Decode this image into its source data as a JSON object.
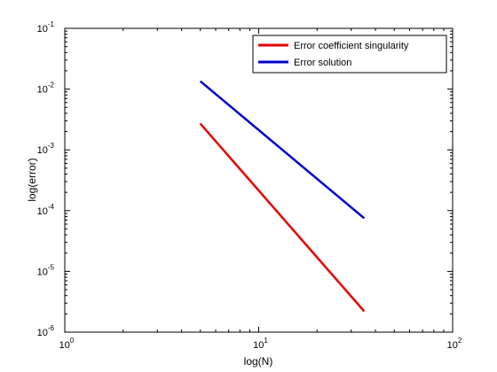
{
  "chart_data": {
    "type": "line",
    "title": "",
    "xlabel": "log(N)",
    "ylabel": "log(error)",
    "xscale": "log",
    "yscale": "log",
    "xlim": [
      1,
      100
    ],
    "ylim": [
      1e-06,
      0.1
    ],
    "grid": false,
    "legend_position": "top-right",
    "x_ticks": [
      {
        "base": "10",
        "exp": "0",
        "value": 1
      },
      {
        "base": "10",
        "exp": "1",
        "value": 10
      },
      {
        "base": "10",
        "exp": "2",
        "value": 100
      }
    ],
    "y_ticks": [
      {
        "base": "10",
        "exp": "-6",
        "value": 1e-06
      },
      {
        "base": "10",
        "exp": "-5",
        "value": 1e-05
      },
      {
        "base": "10",
        "exp": "-4",
        "value": 0.0001
      },
      {
        "base": "10",
        "exp": "-3",
        "value": 0.001
      },
      {
        "base": "10",
        "exp": "-2",
        "value": 0.01
      },
      {
        "base": "10",
        "exp": "-1",
        "value": 0.1
      }
    ],
    "series": [
      {
        "name": "Error coefficient singularity",
        "color": "#e60000",
        "x": [
          5,
          35
        ],
        "y": [
          0.0027,
          2.2e-06
        ]
      },
      {
        "name": "Error solution",
        "color": "#0000cc",
        "x": [
          5,
          35
        ],
        "y": [
          0.0135,
          7.5e-05
        ]
      }
    ]
  }
}
